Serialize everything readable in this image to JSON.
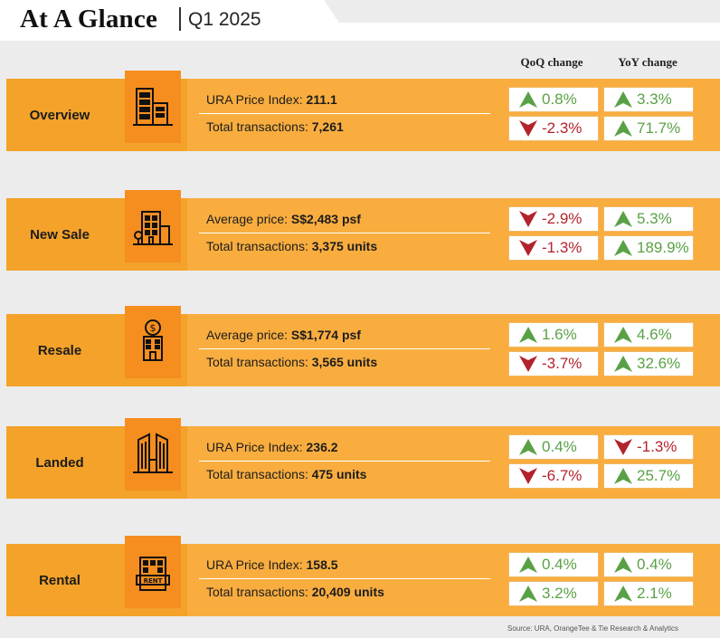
{
  "header": {
    "title": "At A Glance",
    "period": "Q1 2025",
    "qoq_header": "QoQ change",
    "yoy_header": "YoY change"
  },
  "colors": {
    "up": "#5aa146",
    "down": "#b3232c",
    "band": "#f9ad3f",
    "icon_box": "#f58e1f"
  },
  "sections": [
    {
      "label": "Overview",
      "icon": "office-buildings-icon",
      "row1": {
        "label": "URA Price Index: ",
        "value": "211.1"
      },
      "row2": {
        "label": "Total transactions: ",
        "value": "7,261"
      },
      "qoq": [
        {
          "value": "0.8%",
          "dir": "up"
        },
        {
          "value": "-2.3%",
          "dir": "down"
        }
      ],
      "yoy": [
        {
          "value": "3.3%",
          "dir": "up"
        },
        {
          "value": "71.7%",
          "dir": "up"
        }
      ]
    },
    {
      "label": "New Sale",
      "icon": "new-building-icon",
      "row1": {
        "label": "Average price: ",
        "value": "S$2,483 psf"
      },
      "row2": {
        "label": "Total transactions: ",
        "value": "3,375 units"
      },
      "qoq": [
        {
          "value": "-2.9%",
          "dir": "down"
        },
        {
          "value": "-1.3%",
          "dir": "down"
        }
      ],
      "yoy": [
        {
          "value": "5.3%",
          "dir": "up"
        },
        {
          "value": "189.9%",
          "dir": "up"
        }
      ]
    },
    {
      "label": "Resale",
      "icon": "resale-building-dollar-icon",
      "row1": {
        "label": "Average price: ",
        "value": "S$1,774 psf"
      },
      "row2": {
        "label": "Total transactions: ",
        "value": "3,565 units"
      },
      "qoq": [
        {
          "value": "1.6%",
          "dir": "up"
        },
        {
          "value": "-3.7%",
          "dir": "down"
        }
      ],
      "yoy": [
        {
          "value": "4.6%",
          "dir": "up"
        },
        {
          "value": "32.6%",
          "dir": "up"
        }
      ]
    },
    {
      "label": "Landed",
      "icon": "landed-towers-icon",
      "row1": {
        "label": "URA Price Index: ",
        "value": "236.2"
      },
      "row2": {
        "label": "Total transactions: ",
        "value": "475 units"
      },
      "qoq": [
        {
          "value": "0.4%",
          "dir": "up"
        },
        {
          "value": "-6.7%",
          "dir": "down"
        }
      ],
      "yoy": [
        {
          "value": "-1.3%",
          "dir": "down"
        },
        {
          "value": "25.7%",
          "dir": "up"
        }
      ]
    },
    {
      "label": "Rental",
      "icon": "rent-building-icon",
      "row1": {
        "label": "URA Price Index: ",
        "value": "158.5"
      },
      "row2": {
        "label": "Total transactions: ",
        "value": "20,409 units"
      },
      "qoq": [
        {
          "value": "0.4%",
          "dir": "up"
        },
        {
          "value": "3.2%",
          "dir": "up"
        }
      ],
      "yoy": [
        {
          "value": "0.4%",
          "dir": "up"
        },
        {
          "value": "2.1%",
          "dir": "up"
        }
      ]
    }
  ],
  "footer": {
    "source": "Source: URA, OrangeTee & Tie Research & Analytics"
  }
}
